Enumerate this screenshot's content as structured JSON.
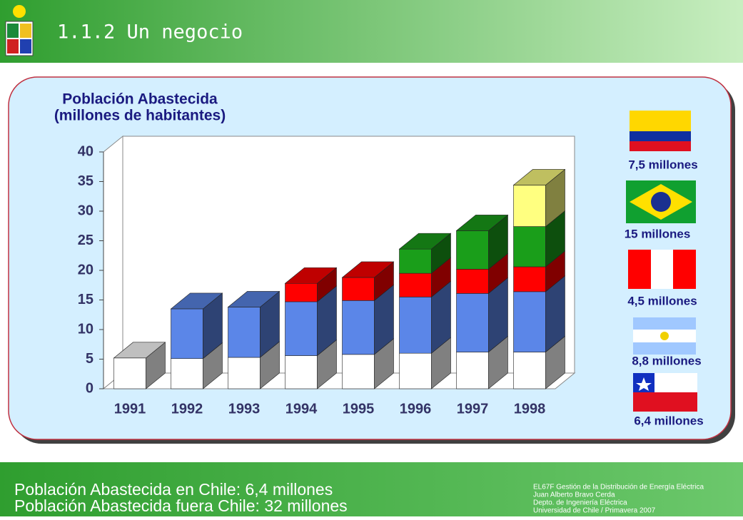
{
  "header": {
    "title": "1.1.2 Un negocio"
  },
  "chart_data": {
    "type": "bar3d_stacked",
    "title": "Población Abastecida",
    "subtitle": "(millones de habitantes)",
    "categories": [
      "1991",
      "1992",
      "1993",
      "1994",
      "1995",
      "1996",
      "1997",
      "1998"
    ],
    "series": [
      {
        "color": "#ffffff",
        "values": [
          5.2,
          5.1,
          5.3,
          5.6,
          5.8,
          6.0,
          6.2,
          6.2
        ]
      },
      {
        "color": "#5b86e8",
        "values": [
          0,
          8.4,
          8.5,
          9.1,
          9.1,
          9.5,
          9.9,
          10.2
        ]
      },
      {
        "color": "#ff0000",
        "values": [
          0,
          0,
          0,
          3.1,
          3.9,
          4.0,
          4.1,
          4.2
        ]
      },
      {
        "color": "#1a9e1a",
        "values": [
          0,
          0,
          0,
          0,
          0,
          4.1,
          6.5,
          6.8
        ]
      },
      {
        "color": "#ffff80",
        "values": [
          0,
          0,
          0,
          0,
          0,
          0,
          0,
          7.0
        ]
      }
    ],
    "ylim": [
      0,
      40
    ],
    "yticks": [
      0,
      5,
      10,
      15,
      20,
      25,
      30,
      35,
      40
    ]
  },
  "flags": [
    {
      "label": "7,5 millones"
    },
    {
      "label": "15 millones"
    },
    {
      "label": "4,5 millones"
    },
    {
      "label": "8,8 millones"
    },
    {
      "label": "6,4 millones"
    }
  ],
  "footer": {
    "lines": [
      "Población Abastecida en Chile: 6,4 millones",
      "Población Abastecida fuera Chile: 32 millones"
    ],
    "credits": [
      "EL67F Gestión de la Distribución de Energía Eléctrica",
      "Juan Alberto Bravo Cerda",
      "Depto. de Ingeniería Eléctrica",
      "Universidad de Chile  /  Primavera 2007"
    ]
  }
}
